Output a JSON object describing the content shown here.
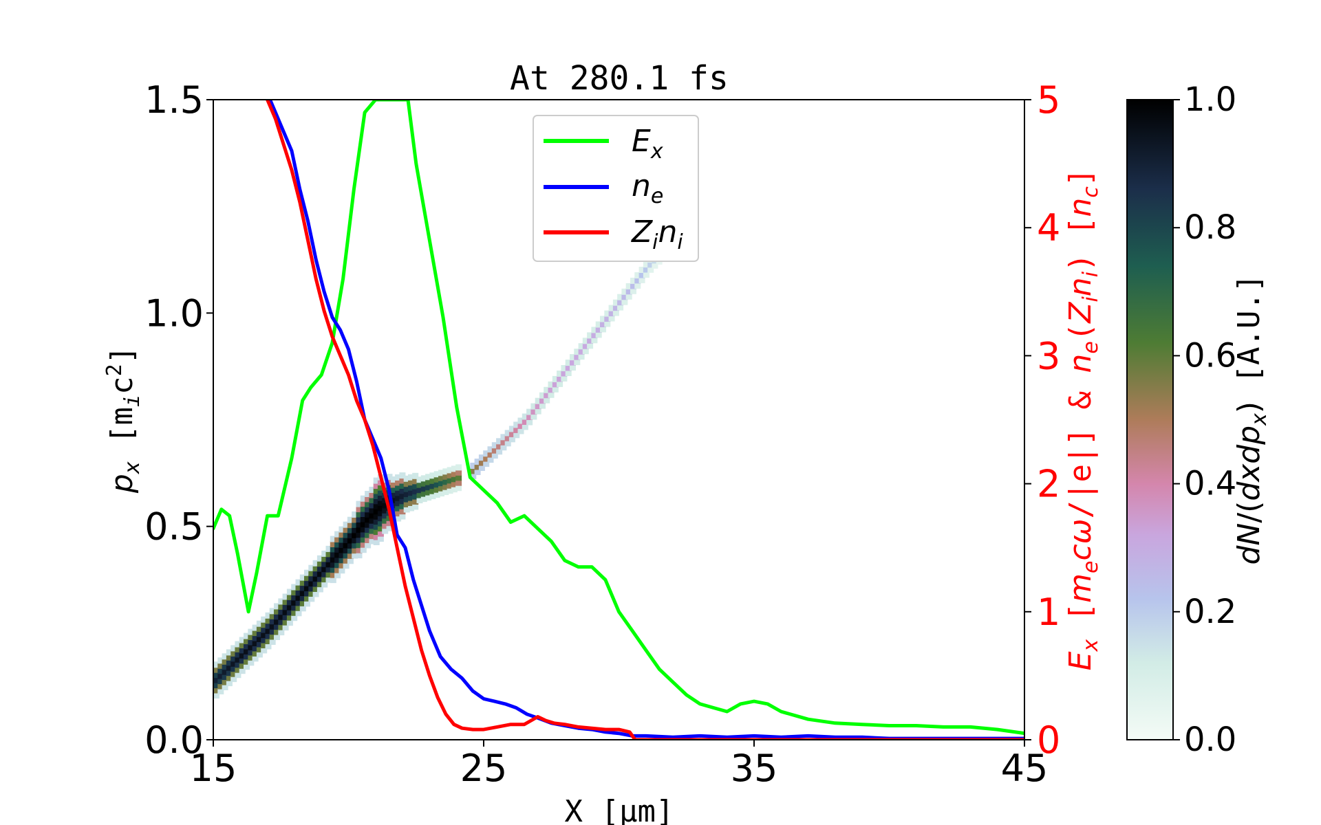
{
  "chart_data": {
    "type": "line",
    "title": "At 280.1 fs",
    "xlabel": "X [μm]",
    "ylabel_left": "p_x [m_ic^2]",
    "ylabel_right": "E_x [m_ecω/|e|] & n_e(Z_in_i) [n_c]",
    "colorbar_label": "dN/(dxdp_x) [A.U.]",
    "xlim": [
      15,
      45
    ],
    "ylim_left": [
      0,
      1.5
    ],
    "ylim_right": [
      0,
      5
    ],
    "colorbar_lim": [
      0,
      1
    ],
    "x_ticks": [
      "15",
      "25",
      "35",
      "45"
    ],
    "y_left_ticks": [
      "0.0",
      "0.5",
      "1.0",
      "1.5"
    ],
    "y_right_ticks": [
      "0",
      "1",
      "2",
      "3",
      "4",
      "5"
    ],
    "colorbar_ticks": [
      "0.0",
      "0.2",
      "0.4",
      "0.6",
      "0.8",
      "1.0"
    ],
    "legend": {
      "placement": "top-center",
      "entries": [
        {
          "key": "Ex",
          "base": "E",
          "sub": "x",
          "color": "#00ff00"
        },
        {
          "key": "ne",
          "base": "n",
          "sub": "e",
          "color": "#0000ff"
        },
        {
          "key": "Zini",
          "base": "Z",
          "sub": "i",
          "base2": "n",
          "sub2": "i",
          "color": "#ff0000"
        }
      ]
    },
    "series": [
      {
        "name": "Ex",
        "axis": "right",
        "color": "#00ff00",
        "x": [
          15.0,
          15.3,
          15.6,
          15.9,
          16.3,
          16.6,
          17.0,
          17.4,
          17.9,
          18.3,
          18.6,
          19.0,
          19.4,
          19.8,
          20.2,
          20.6,
          21.0,
          21.3,
          21.6,
          22.0,
          22.2,
          22.5,
          23.0,
          23.5,
          24.0,
          24.5,
          25.0,
          25.5,
          26.0,
          26.5,
          27.0,
          27.5,
          28.0,
          28.5,
          29.0,
          29.5,
          30.0,
          30.5,
          31.0,
          31.5,
          32.0,
          32.5,
          33.0,
          33.5,
          34.0,
          34.5,
          35.0,
          35.5,
          36.0,
          37.0,
          38.0,
          39.0,
          40.0,
          41.0,
          42.0,
          43.0,
          44.0,
          45.0
        ],
        "y": [
          1.65,
          1.8,
          1.75,
          1.45,
          1.0,
          1.3,
          1.75,
          1.75,
          2.2,
          2.65,
          2.75,
          2.85,
          3.1,
          3.6,
          4.3,
          4.9,
          5.0,
          5.0,
          5.0,
          5.0,
          5.0,
          4.5,
          3.9,
          3.3,
          2.6,
          2.05,
          1.95,
          1.85,
          1.7,
          1.75,
          1.65,
          1.55,
          1.4,
          1.35,
          1.35,
          1.25,
          1.0,
          0.85,
          0.7,
          0.55,
          0.45,
          0.35,
          0.28,
          0.25,
          0.22,
          0.28,
          0.3,
          0.28,
          0.22,
          0.16,
          0.13,
          0.12,
          0.11,
          0.11,
          0.1,
          0.1,
          0.08,
          0.05
        ]
      },
      {
        "name": "ne",
        "axis": "right",
        "color": "#0000ff",
        "x": [
          17.1,
          17.3,
          17.6,
          17.9,
          18.2,
          18.5,
          18.8,
          19.1,
          19.4,
          19.7,
          20.0,
          20.3,
          20.6,
          20.9,
          21.2,
          21.5,
          21.8,
          22.1,
          22.4,
          22.7,
          23.0,
          23.4,
          23.8,
          24.2,
          24.6,
          25.0,
          25.4,
          25.8,
          26.2,
          26.6,
          27.0,
          27.5,
          28.0,
          28.5,
          29.0,
          29.5,
          30.0,
          30.5,
          31.0,
          32.0,
          33.0,
          34.0,
          35.0,
          36.0,
          37.0,
          38.0,
          39.0,
          40.0,
          42.0,
          45.0
        ],
        "y": [
          5.0,
          4.9,
          4.75,
          4.6,
          4.3,
          4.05,
          3.75,
          3.5,
          3.3,
          3.2,
          3.05,
          2.8,
          2.5,
          2.35,
          2.2,
          1.95,
          1.6,
          1.5,
          1.25,
          1.05,
          0.85,
          0.65,
          0.55,
          0.48,
          0.38,
          0.32,
          0.3,
          0.28,
          0.25,
          0.2,
          0.17,
          0.13,
          0.11,
          0.09,
          0.08,
          0.06,
          0.05,
          0.03,
          0.03,
          0.02,
          0.03,
          0.02,
          0.03,
          0.02,
          0.03,
          0.02,
          0.02,
          0.01,
          0.01,
          0.01
        ]
      },
      {
        "name": "Zini",
        "axis": "right",
        "color": "#ff0000",
        "x": [
          17.0,
          17.3,
          17.6,
          17.9,
          18.2,
          18.5,
          18.8,
          19.1,
          19.4,
          19.7,
          20.0,
          20.3,
          20.6,
          20.9,
          21.2,
          21.5,
          21.8,
          22.1,
          22.4,
          22.7,
          23.0,
          23.3,
          23.6,
          23.9,
          24.2,
          24.6,
          25.0,
          25.5,
          26.0,
          26.5,
          27.0,
          27.3,
          27.6,
          28.0,
          28.5,
          29.0,
          29.5,
          30.0,
          30.4,
          30.6,
          31.0,
          33.0,
          35.0,
          37.0,
          39.0,
          41.0,
          43.0,
          45.0
        ],
        "y": [
          5.0,
          4.85,
          4.65,
          4.45,
          4.2,
          3.9,
          3.6,
          3.35,
          3.15,
          3.0,
          2.85,
          2.65,
          2.5,
          2.3,
          2.05,
          1.8,
          1.5,
          1.2,
          0.95,
          0.7,
          0.5,
          0.33,
          0.2,
          0.12,
          0.09,
          0.08,
          0.08,
          0.1,
          0.12,
          0.12,
          0.18,
          0.15,
          0.13,
          0.12,
          0.1,
          0.09,
          0.08,
          0.08,
          0.06,
          0.0,
          0.0,
          0.0,
          0.0,
          0.0,
          0.0,
          0.0,
          0.0,
          0.0
        ]
      }
    ],
    "phase_space": {
      "axis": "left",
      "dense_band": {
        "x": [
          15.0,
          16.0,
          17.0,
          18.0,
          19.0,
          20.0,
          20.5,
          21.0,
          21.5,
          22.0,
          22.5,
          23.0,
          23.5,
          24.0
        ],
        "y": [
          0.14,
          0.2,
          0.26,
          0.33,
          0.4,
          0.47,
          0.51,
          0.54,
          0.56,
          0.575,
          0.585,
          0.595,
          0.605,
          0.615
        ],
        "spread": [
          0.03,
          0.03,
          0.03,
          0.035,
          0.04,
          0.05,
          0.06,
          0.07,
          0.055,
          0.04,
          0.03,
          0.02,
          0.015,
          0.01
        ],
        "density": [
          0.9,
          0.95,
          0.95,
          0.97,
          0.97,
          1.0,
          1.0,
          1.0,
          0.95,
          0.9,
          0.85,
          0.8,
          0.7,
          0.6
        ]
      },
      "tail": {
        "x": [
          24.5,
          25.0,
          25.5,
          26.0,
          26.5,
          27.0,
          27.5,
          28.0,
          28.5,
          29.0,
          29.5,
          30.0,
          30.5,
          31.0,
          31.5
        ],
        "y": [
          0.63,
          0.66,
          0.69,
          0.72,
          0.75,
          0.79,
          0.83,
          0.87,
          0.91,
          0.95,
          0.99,
          1.03,
          1.07,
          1.11,
          1.14
        ],
        "density": [
          0.55,
          0.5,
          0.45,
          0.42,
          0.38,
          0.35,
          0.33,
          0.32,
          0.31,
          0.3,
          0.28,
          0.26,
          0.24,
          0.2,
          0.12
        ]
      }
    }
  }
}
